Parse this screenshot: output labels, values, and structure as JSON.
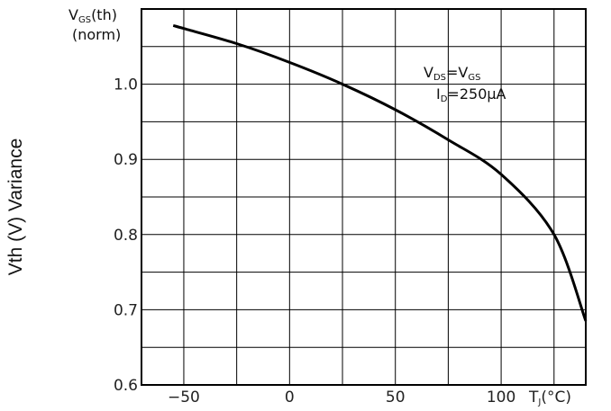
{
  "chart_data": {
    "type": "line",
    "ylabel": "Vth (V) Variance",
    "y_axis_header": [
      "VGS(th)",
      "(norm)"
    ],
    "x_axis_end_label": "TJ(°C)",
    "annotation": [
      "VDS=VGS",
      "ID=250μA"
    ],
    "xlim": [
      -70,
      140
    ],
    "ylim": [
      0.6,
      1.1
    ],
    "x_ticks": [
      -50,
      0,
      50,
      100
    ],
    "x_tick_labels": [
      "−50",
      "0",
      "50",
      "100"
    ],
    "x_gridlines": [
      -50,
      -25,
      0,
      25,
      50,
      75,
      100,
      125
    ],
    "y_ticks": [
      0.6,
      0.7,
      0.8,
      0.9,
      1.0
    ],
    "y_tick_labels": [
      "0.6",
      "0.7",
      "0.8",
      "0.9",
      "1.0"
    ],
    "y_gridlines": [
      0.65,
      0.7,
      0.75,
      0.8,
      0.85,
      0.9,
      0.95,
      1.0,
      1.05
    ],
    "grid": true,
    "series": [
      {
        "x": [
          -55,
          -50,
          -25,
          0,
          25,
          50,
          75,
          100,
          125,
          140
        ],
        "y": [
          1.078,
          1.074,
          1.054,
          1.029,
          1.0,
          0.966,
          0.926,
          0.88,
          0.8,
          0.685
        ]
      }
    ],
    "colors": {
      "line": "#000000",
      "grid": "#000000",
      "axis": "#000000"
    }
  }
}
